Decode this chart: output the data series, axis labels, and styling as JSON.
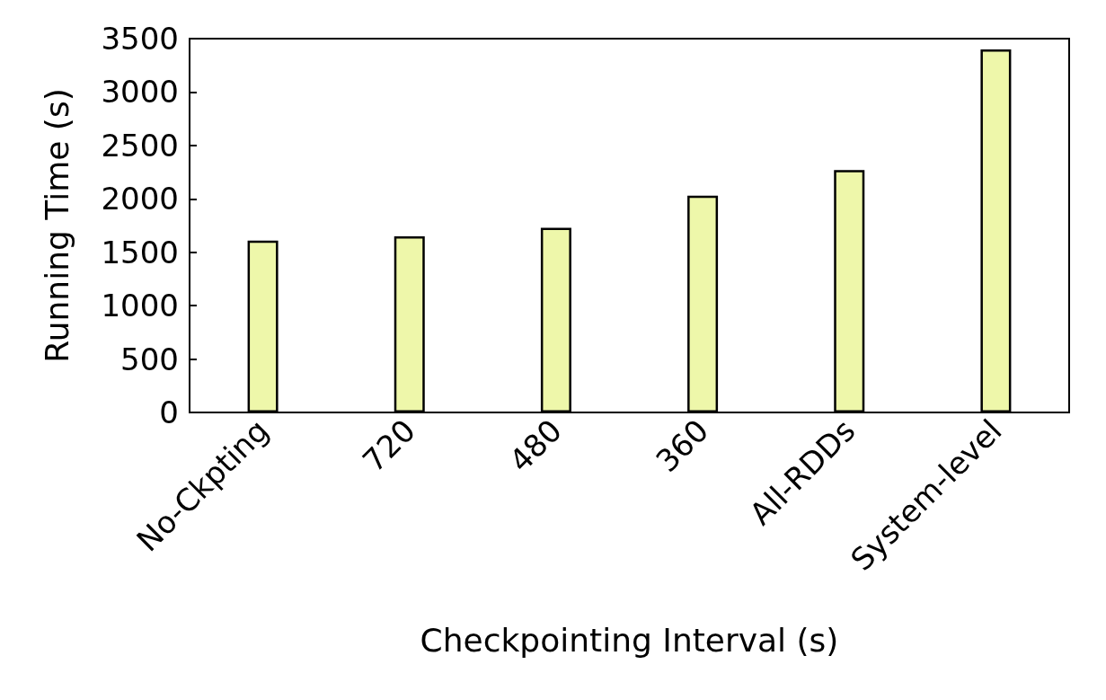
{
  "chart_data": {
    "type": "bar",
    "xlabel": "Checkpointing Interval (s)",
    "ylabel": "Running Time (s)",
    "categories": [
      "No-Ckpting",
      "720",
      "480",
      "360",
      "All-RDDs",
      "System-level"
    ],
    "values": [
      1610,
      1650,
      1730,
      2030,
      2270,
      3400
    ],
    "color": "#eef7aa",
    "ylim": [
      0,
      3500
    ],
    "yticks": [
      0,
      500,
      1000,
      1500,
      2000,
      2500,
      3000,
      3500
    ],
    "grid": false
  }
}
